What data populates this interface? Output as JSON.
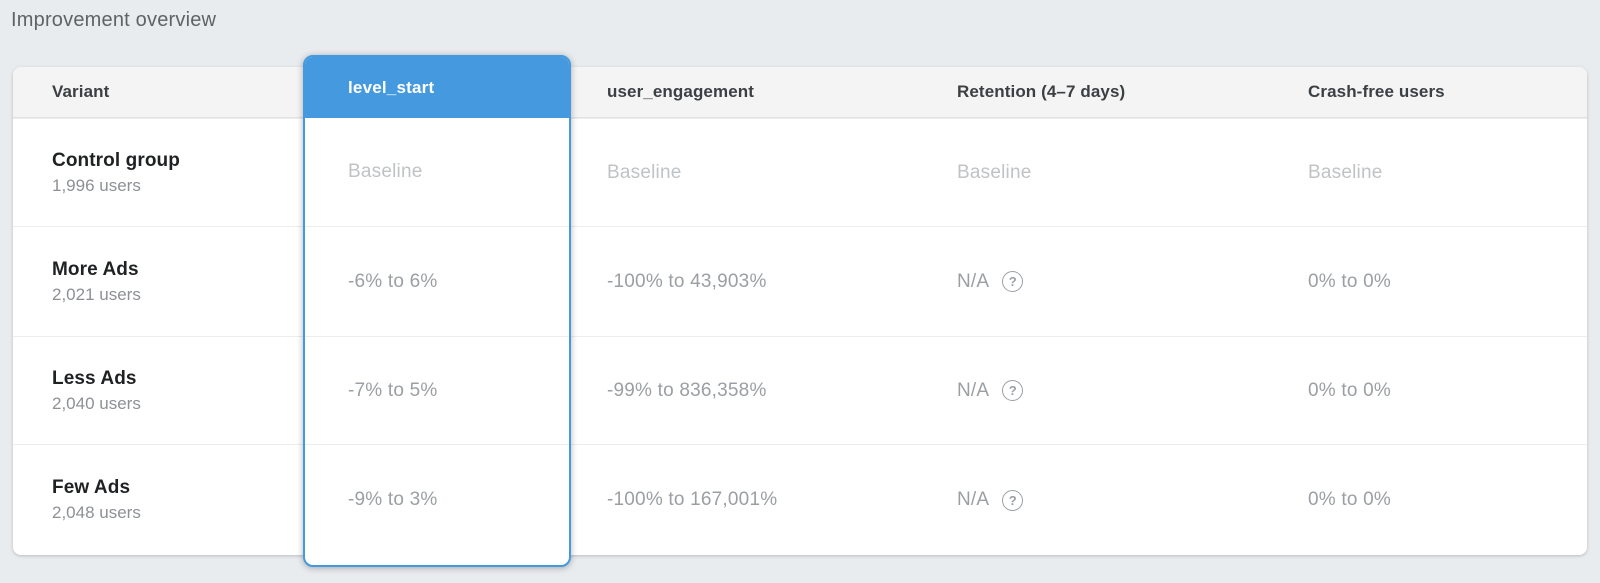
{
  "page": {
    "title": "Improvement overview"
  },
  "colors": {
    "accent_blue": "#4599df",
    "page_bg": "#e9ecef",
    "header_bg": "#f4f4f5",
    "baseline_text": "#c0c3c6",
    "metric_text": "#9b9fa3"
  },
  "icons": {
    "help": "?"
  },
  "table": {
    "columns": [
      {
        "label": "Variant",
        "selected": false
      },
      {
        "label": "level_start",
        "selected": true
      },
      {
        "label": "user_engagement",
        "selected": false
      },
      {
        "label": "Retention (4–7 days)",
        "selected": false
      },
      {
        "label": "Crash-free users",
        "selected": false
      }
    ],
    "rows": [
      {
        "variant": "Control group",
        "users": "1,996 users",
        "level_start": "Baseline",
        "user_engagement": "Baseline",
        "retention": "Baseline",
        "crash_free": "Baseline",
        "is_baseline": true
      },
      {
        "variant": "More Ads",
        "users": "2,021 users",
        "level_start": "-6% to 6%",
        "user_engagement": "-100% to 43,903%",
        "retention": "N/A",
        "crash_free": "0% to 0%",
        "is_baseline": false
      },
      {
        "variant": "Less Ads",
        "users": "2,040 users",
        "level_start": "-7% to 5%",
        "user_engagement": "-99% to 836,358%",
        "retention": "N/A",
        "crash_free": "0% to 0%",
        "is_baseline": false
      },
      {
        "variant": "Few Ads",
        "users": "2,048 users",
        "level_start": "-9% to 3%",
        "user_engagement": "-100% to 167,001%",
        "retention": "N/A",
        "crash_free": "0% to 0%",
        "is_baseline": false
      }
    ]
  }
}
